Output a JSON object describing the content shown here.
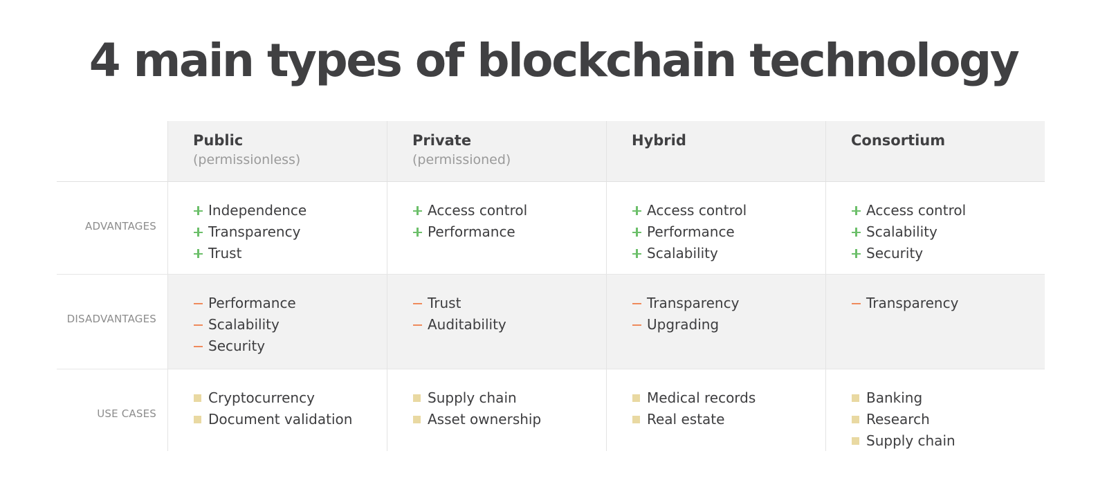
{
  "title": "4 main types of blockchain technology",
  "row_labels": {
    "advantages": "ADVANTAGES",
    "disadvantages": "DISADVANTAGES",
    "use_cases": "USE CASES"
  },
  "colors": {
    "plus": "#6cbf6a",
    "minus": "#ef8a5c",
    "square": "#e9d9a2",
    "shade": "#f2f2f2"
  },
  "columns": [
    {
      "title": "Public",
      "subtitle": "(permissionless)",
      "advantages": [
        "Independence",
        "Transparency",
        "Trust"
      ],
      "disadvantages": [
        "Performance",
        "Scalability",
        "Security"
      ],
      "use_cases": [
        "Cryptocurrency",
        "Document validation"
      ]
    },
    {
      "title": "Private",
      "subtitle": "(permissioned)",
      "advantages": [
        "Access control",
        "Performance"
      ],
      "disadvantages": [
        "Trust",
        "Auditability"
      ],
      "use_cases": [
        "Supply chain",
        "Asset ownership"
      ]
    },
    {
      "title": "Hybrid",
      "subtitle": "",
      "advantages": [
        "Access control",
        "Performance",
        "Scalability"
      ],
      "disadvantages": [
        "Transparency",
        "Upgrading"
      ],
      "use_cases": [
        "Medical records",
        "Real estate"
      ]
    },
    {
      "title": "Consortium",
      "subtitle": "",
      "advantages": [
        "Access control",
        "Scalability",
        "Security"
      ],
      "disadvantages": [
        "Transparency"
      ],
      "use_cases": [
        "Banking",
        "Research",
        "Supply chain"
      ]
    }
  ]
}
